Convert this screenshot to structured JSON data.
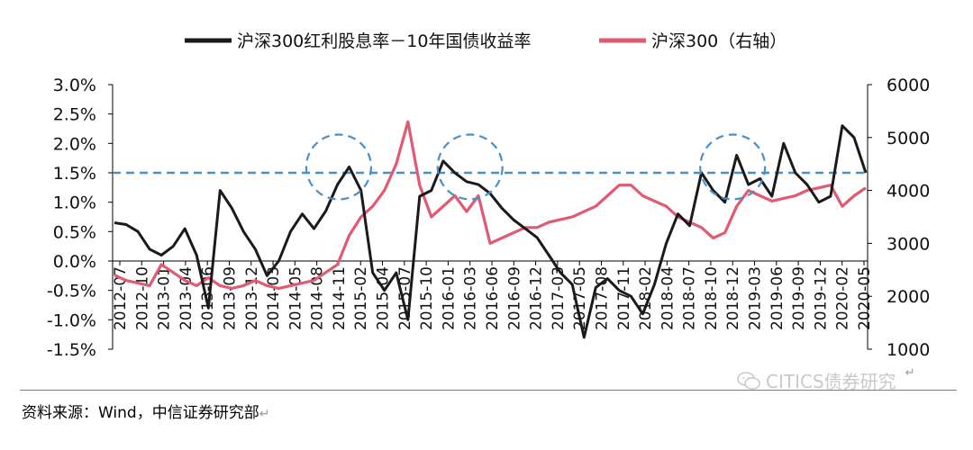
{
  "chart_data": {
    "type": "line",
    "title": "",
    "legend": [
      {
        "label": "沪深300红利股息率－10年国债收益率",
        "color": "#1a1a1a"
      },
      {
        "label": "沪深300（右轴）",
        "color": "#e05a72"
      }
    ],
    "legend_position": "top",
    "left_axis": {
      "ticks": [
        "3.0%",
        "2.5%",
        "2.0%",
        "1.5%",
        "1.0%",
        "0.5%",
        "0.0%",
        "-0.5%",
        "-1.0%",
        "-1.5%"
      ],
      "min": -1.5,
      "max": 3.0
    },
    "right_axis": {
      "ticks": [
        "6000",
        "5000",
        "4000",
        "3000",
        "2000",
        "1000"
      ],
      "min": 1000,
      "max": 6000
    },
    "x_ticks": [
      "2012-07",
      "2012-10",
      "2013-01",
      "2013-04",
      "2013-06",
      "2013-09",
      "2013-12",
      "2014-03",
      "2014-05",
      "2014-08",
      "2014-11",
      "2015-02",
      "2015-04",
      "2015-07",
      "2015-10",
      "2016-01",
      "2016-03",
      "2016-06",
      "2016-09",
      "2016-12",
      "2017-03",
      "2017-05",
      "2017-08",
      "2017-11",
      "2018-02",
      "2018-04",
      "2018-07",
      "2018-10",
      "2018-12",
      "2019-03",
      "2019-06",
      "2019-09",
      "2019-12",
      "2020-02",
      "2020-05"
    ],
    "reference_line": {
      "value": 1.5,
      "axis": "left",
      "style": "dashed",
      "color": "#4a90c8"
    },
    "highlights": [
      "2014-11",
      "2016-02",
      "2018-12"
    ],
    "series": [
      {
        "name": "沪深300红利股息率－10年国债收益率",
        "axis": "left",
        "color": "#1a1a1a",
        "values": [
          0.65,
          0.62,
          0.5,
          0.2,
          0.1,
          0.25,
          0.55,
          0.1,
          -0.8,
          1.2,
          0.9,
          0.5,
          0.2,
          -0.25,
          0.0,
          0.5,
          0.8,
          0.55,
          0.85,
          1.3,
          1.6,
          1.2,
          -0.2,
          -0.5,
          -0.2,
          -1.0,
          1.1,
          1.2,
          1.7,
          1.5,
          1.35,
          1.3,
          1.15,
          0.9,
          0.7,
          0.55,
          0.4,
          0.1,
          -0.2,
          -0.4,
          -1.3,
          -0.45,
          -0.3,
          -0.5,
          -0.6,
          -0.9,
          -0.4,
          0.3,
          0.8,
          0.6,
          1.5,
          1.2,
          1.0,
          1.8,
          1.3,
          1.4,
          1.1,
          2.0,
          1.5,
          1.3,
          1.0,
          1.1,
          2.3,
          2.1,
          1.5
        ]
      },
      {
        "name": "沪深300（右轴）",
        "axis": "right",
        "color": "#e05a72",
        "values": [
          2400,
          2300,
          2250,
          2200,
          2600,
          2450,
          2300,
          2200,
          2350,
          2200,
          2150,
          2200,
          2300,
          2200,
          2150,
          2200,
          2250,
          2300,
          2450,
          2600,
          3150,
          3500,
          3700,
          4000,
          4500,
          5300,
          4100,
          3500,
          3700,
          3900,
          3600,
          3900,
          3000,
          3100,
          3200,
          3300,
          3300,
          3400,
          3450,
          3500,
          3600,
          3700,
          3900,
          4100,
          4100,
          3900,
          3800,
          3700,
          3500,
          3400,
          3300,
          3100,
          3200,
          3700,
          4000,
          3900,
          3800,
          3850,
          3900,
          4000,
          4050,
          4100,
          3700,
          3900,
          4050
        ]
      }
    ]
  },
  "source_text": "资料来源：Wind，中信证券研究部",
  "source_mark": "↵",
  "watermark_text": "CITICS债券研究",
  "watermark_mark": "↵"
}
